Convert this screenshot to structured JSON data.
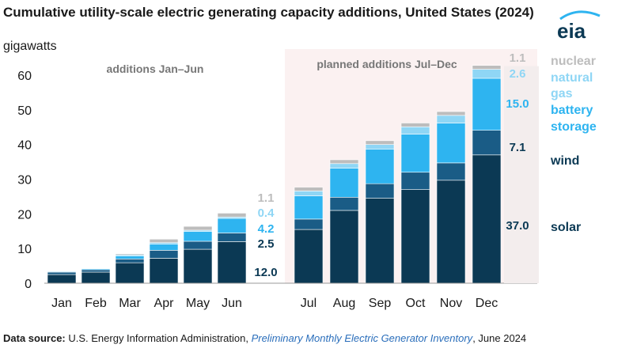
{
  "header": {
    "title": "Cumulative utility-scale electric generating capacity additions, United States (2024)",
    "units": "gigawatts"
  },
  "logo": {
    "text": "eia",
    "icon": "eia-logo-icon"
  },
  "source": {
    "label": "Data source:",
    "agency": " U.S. Energy Information Administration, ",
    "publication": "Preliminary Monthly Electric Generator Inventory",
    "date": ", June 2024"
  },
  "chart_data": {
    "type": "bar",
    "stacked": true,
    "categories": [
      "Jan",
      "Feb",
      "Mar",
      "Apr",
      "May",
      "Jun",
      "Jul",
      "Aug",
      "Sep",
      "Oct",
      "Nov",
      "Dec"
    ],
    "ylim": [
      0,
      60
    ],
    "yticks": [
      0,
      10,
      20,
      30,
      40,
      50,
      60
    ],
    "xlabel": "",
    "ylabel": "",
    "annotations": {
      "actual": "additions Jan–Jun",
      "planned": "planned additions Jul–Dec"
    },
    "series": [
      {
        "name": "solar",
        "color": "#0b3954",
        "values": [
          2.5,
          3.2,
          5.9,
          7.2,
          9.8,
          12.0,
          15.5,
          21.0,
          24.5,
          27.0,
          29.7,
          37.0
        ]
      },
      {
        "name": "wind",
        "color": "#1a5c86",
        "values": [
          0.7,
          0.7,
          1.1,
          2.3,
          2.3,
          2.5,
          3.0,
          3.8,
          4.2,
          5.0,
          5.0,
          7.1
        ]
      },
      {
        "name": "battery storage",
        "color": "#2eb4f0",
        "values": [
          0.2,
          0.3,
          0.9,
          1.8,
          2.8,
          4.2,
          6.7,
          8.4,
          10.0,
          11.0,
          11.5,
          15.0
        ]
      },
      {
        "name": "natural gas",
        "color": "#8fd6f5",
        "values": [
          0.1,
          0.1,
          0.3,
          0.4,
          0.4,
          0.4,
          1.4,
          1.3,
          1.3,
          2.1,
          2.2,
          2.6
        ]
      },
      {
        "name": "nuclear",
        "color": "#bdbdbd",
        "values": [
          0.1,
          0.1,
          0.3,
          1.0,
          1.1,
          1.1,
          1.1,
          1.1,
          1.1,
          1.1,
          1.1,
          1.1
        ]
      }
    ],
    "data_labels": {
      "Jun": [
        "12.0",
        "2.5",
        "4.2",
        "0.4",
        "1.1"
      ],
      "Dec": [
        "37.0",
        "7.1",
        "15.0",
        "2.6",
        "1.1"
      ]
    },
    "legend": {
      "placement": "right",
      "entries": [
        {
          "text": "nuclear",
          "color": "#bdbdbd"
        },
        {
          "text": "natural gas",
          "color": "#8fd6f5"
        },
        {
          "text": "battery storage",
          "color": "#2eb4f0"
        },
        {
          "text": "wind",
          "color": "#0b3954"
        },
        {
          "text": "solar",
          "color": "#0b3954"
        }
      ]
    }
  }
}
